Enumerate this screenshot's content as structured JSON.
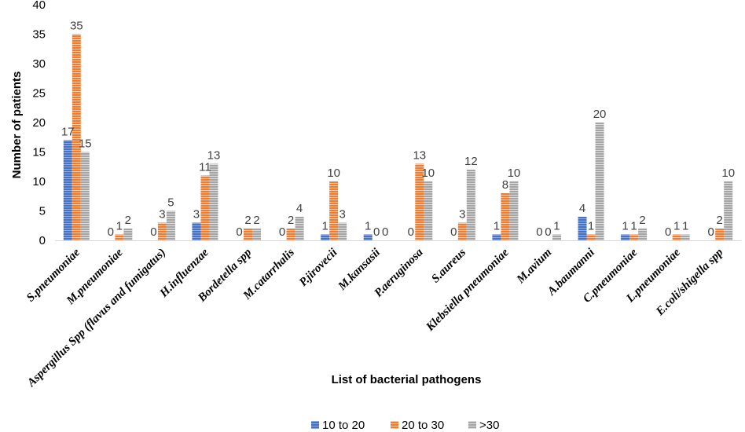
{
  "chart_data": {
    "type": "bar",
    "title": "",
    "xlabel": "List of  bacterial pathogens",
    "ylabel": "Number of patients",
    "ylim": [
      0,
      40
    ],
    "yticks": [
      0,
      5,
      10,
      15,
      20,
      25,
      30,
      35,
      40
    ],
    "grid": false,
    "legend_position": "bottom",
    "categories": [
      "S.pneumoniae",
      "M.pneumoniae",
      "Aspergillus Spp (flavus and fumigatus)",
      "H.influenzae",
      "Bordetella spp",
      "M.catarrhalis",
      "P.jirovecii",
      "M.kansasii",
      "P.aeruginosa",
      "S.aureus",
      "Klebsiella pneumoniae",
      "M.avium",
      "A.baumanni",
      "C.pneumoniae",
      "L.pneumoniae",
      "E.coli/shigella spp"
    ],
    "series": [
      {
        "name": "10 to 20",
        "color": "#4472C4",
        "values": [
          17,
          0,
          0,
          3,
          0,
          0,
          1,
          1,
          0,
          0,
          1,
          0,
          4,
          1,
          0,
          0
        ]
      },
      {
        "name": "20 to 30",
        "color": "#ED7D31",
        "values": [
          35,
          1,
          3,
          11,
          2,
          2,
          10,
          0,
          13,
          3,
          8,
          0,
          1,
          1,
          1,
          2
        ]
      },
      {
        "name": ">30",
        "color": "#A5A5A5",
        "values": [
          15,
          2,
          5,
          13,
          2,
          4,
          3,
          0,
          10,
          12,
          10,
          1,
          20,
          2,
          1,
          10
        ]
      }
    ]
  }
}
